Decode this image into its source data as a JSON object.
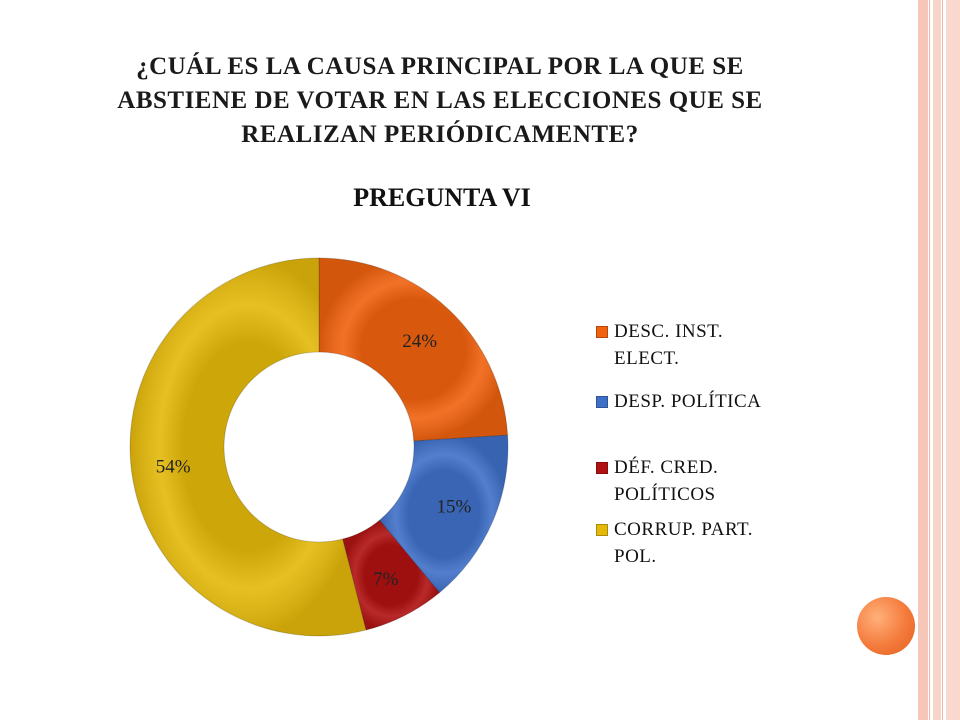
{
  "slide": {
    "title_lines": [
      "¿CUÁL ES LA CAUSA PRINCIPAL POR LA QUE SE",
      "ABSTIENE DE VOTAR EN LAS ELECCIONES QUE SE",
      "REALIZAN PERIÓDICAMENTE?"
    ]
  },
  "chart_data": {
    "type": "pie",
    "style": "doughnut",
    "title": "PREGUNTA VI",
    "legend_position": "right",
    "slices": [
      {
        "label": "DESC. INST. ELECT.",
        "label_lines": [
          "DESC. INST.",
          "ELECT."
        ],
        "value": 24,
        "data_label": "24%",
        "color": "#f0620f"
      },
      {
        "label": "DESP. POLÍTICA",
        "label_lines": [
          "DESP. POLÍTICA"
        ],
        "value": 15,
        "data_label": "15%",
        "color": "#3f70c8"
      },
      {
        "label": "DÉF. CRED. POLÍTICOS",
        "label_lines": [
          "DÉF. CRED.",
          "POLÍTICOS"
        ],
        "value": 7,
        "data_label": "7%",
        "color": "#b01212"
      },
      {
        "label": "CORRUP. PART. POL.",
        "label_lines": [
          "CORRUP. PART.",
          "POL."
        ],
        "value": 54,
        "data_label": "54%",
        "color": "#e4b90a"
      }
    ]
  },
  "theme": {
    "accent": "#f47a3b",
    "side_bars": "#f6c7b8"
  }
}
